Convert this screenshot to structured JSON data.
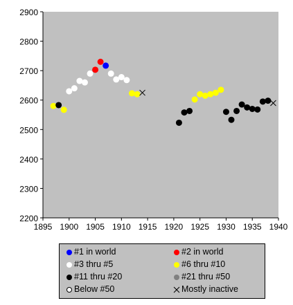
{
  "chart_data": {
    "type": "scatter",
    "xlim": [
      1895,
      1940
    ],
    "ylim": [
      2200,
      2900
    ],
    "x_ticks": [
      "1895",
      "1900",
      "1905",
      "1910",
      "1915",
      "1920",
      "1925",
      "1930",
      "1935",
      "1940"
    ],
    "y_ticks": [
      "2200",
      "2300",
      "2400",
      "2500",
      "2600",
      "2700",
      "2800",
      "2900"
    ],
    "grid": false,
    "plot_background": "#c0c0c0",
    "legend_position": "bottom",
    "series": [
      {
        "name": "#1 in world",
        "color": "#0000ff",
        "marker": "dot",
        "points": [
          [
            1907,
            2717
          ]
        ]
      },
      {
        "name": "#2 in world",
        "color": "#ff0000",
        "marker": "dot",
        "points": [
          [
            1905,
            2703
          ],
          [
            1906,
            2730
          ]
        ]
      },
      {
        "name": "#3 thru #5",
        "color": "#ffffff",
        "marker": "dot",
        "points": [
          [
            1900,
            2630
          ],
          [
            1901,
            2640
          ],
          [
            1902,
            2665
          ],
          [
            1903,
            2660
          ],
          [
            1904,
            2690
          ],
          [
            1908,
            2690
          ],
          [
            1909,
            2670
          ],
          [
            1910,
            2678
          ],
          [
            1911,
            2668
          ]
        ]
      },
      {
        "name": "#6 thru #10",
        "color": "#ffff00",
        "marker": "dot",
        "points": [
          [
            1897,
            2580
          ],
          [
            1899,
            2567
          ],
          [
            1912,
            2623
          ],
          [
            1913,
            2620
          ],
          [
            1924,
            2602
          ],
          [
            1925,
            2620
          ],
          [
            1926,
            2615
          ],
          [
            1927,
            2620
          ],
          [
            1928,
            2625
          ],
          [
            1929,
            2635
          ]
        ]
      },
      {
        "name": "#11 thru #20",
        "color": "#000000",
        "marker": "dot",
        "points": [
          [
            1898,
            2583
          ],
          [
            1921,
            2523
          ],
          [
            1922,
            2558
          ],
          [
            1923,
            2563
          ],
          [
            1930,
            2560
          ],
          [
            1931,
            2533
          ],
          [
            1932,
            2563
          ],
          [
            1933,
            2585
          ],
          [
            1934,
            2575
          ],
          [
            1935,
            2570
          ],
          [
            1936,
            2568
          ],
          [
            1937,
            2595
          ],
          [
            1938,
            2598
          ]
        ]
      },
      {
        "name": "#21 thru #50",
        "color": "#808080",
        "marker": "dot",
        "points": []
      },
      {
        "name": "Below #50",
        "color": "#ffffff",
        "marker": "ring",
        "points": []
      },
      {
        "name": "Mostly inactive",
        "color": "#000000",
        "marker": "x",
        "points": [
          [
            1914,
            2625
          ],
          [
            1939,
            2590
          ]
        ]
      }
    ]
  }
}
